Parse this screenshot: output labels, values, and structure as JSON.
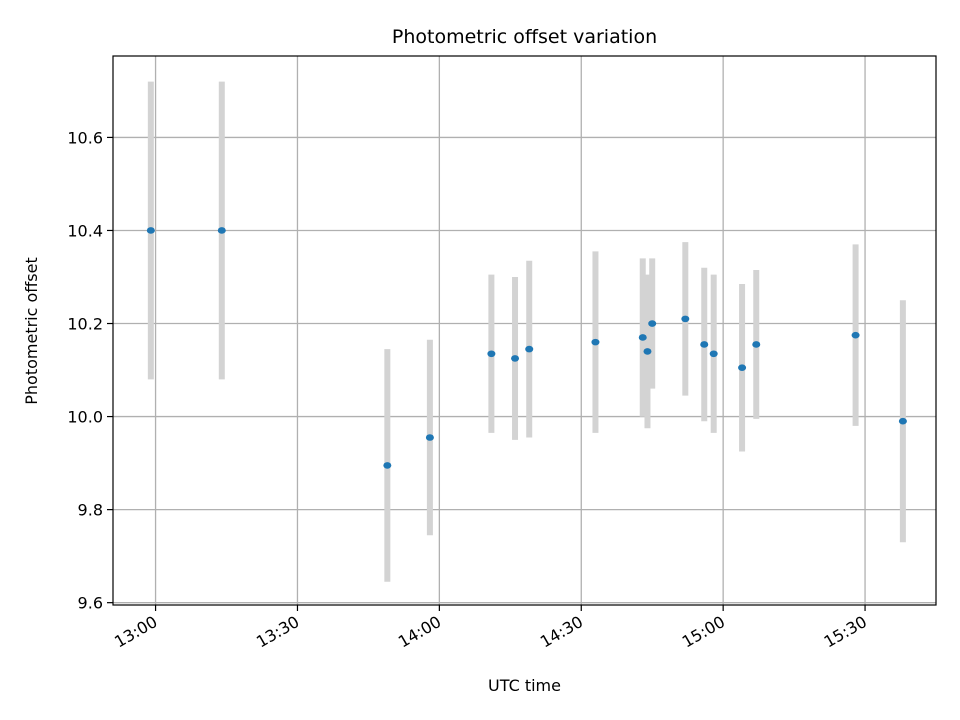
{
  "chart_data": {
    "type": "scatter",
    "title": "Photometric offset variation",
    "xlabel": "UTC time",
    "ylabel": "Photometric offset",
    "grid": true,
    "x_ticks": [
      "13:00",
      "13:30",
      "14:00",
      "14:30",
      "15:00",
      "15:30"
    ],
    "y_ticks": [
      "9.6",
      "9.8",
      "10.0",
      "10.2",
      "10.4",
      "10.6"
    ],
    "xlim": [
      "12:51",
      "15:45"
    ],
    "ylim": [
      9.595,
      10.775
    ],
    "colors": {
      "point": "#1f77b4",
      "errorbar": "#d3d3d3",
      "grid": "#b0b0b0"
    },
    "points": [
      {
        "x": "12:59",
        "y": 10.4,
        "yerr": 0.32
      },
      {
        "x": "13:14",
        "y": 10.4,
        "yerr": 0.32
      },
      {
        "x": "13:49",
        "y": 9.895,
        "yerr": 0.25
      },
      {
        "x": "13:58",
        "y": 9.955,
        "yerr": 0.21
      },
      {
        "x": "14:11",
        "y": 10.135,
        "yerr": 0.17
      },
      {
        "x": "14:16",
        "y": 10.125,
        "yerr": 0.175
      },
      {
        "x": "14:19",
        "y": 10.145,
        "yerr": 0.19
      },
      {
        "x": "14:33",
        "y": 10.16,
        "yerr": 0.195
      },
      {
        "x": "14:43",
        "y": 10.17,
        "yerr": 0.17
      },
      {
        "x": "14:44",
        "y": 10.14,
        "yerr": 0.165
      },
      {
        "x": "14:45",
        "y": 10.2,
        "yerr": 0.14
      },
      {
        "x": "14:52",
        "y": 10.21,
        "yerr": 0.165
      },
      {
        "x": "14:56",
        "y": 10.155,
        "yerr": 0.165
      },
      {
        "x": "14:58",
        "y": 10.135,
        "yerr": 0.17
      },
      {
        "x": "15:04",
        "y": 10.105,
        "yerr": 0.18
      },
      {
        "x": "15:07",
        "y": 10.155,
        "yerr": 0.16
      },
      {
        "x": "15:28",
        "y": 10.175,
        "yerr": 0.195
      },
      {
        "x": "15:38",
        "y": 9.99,
        "yerr": 0.26
      }
    ]
  }
}
